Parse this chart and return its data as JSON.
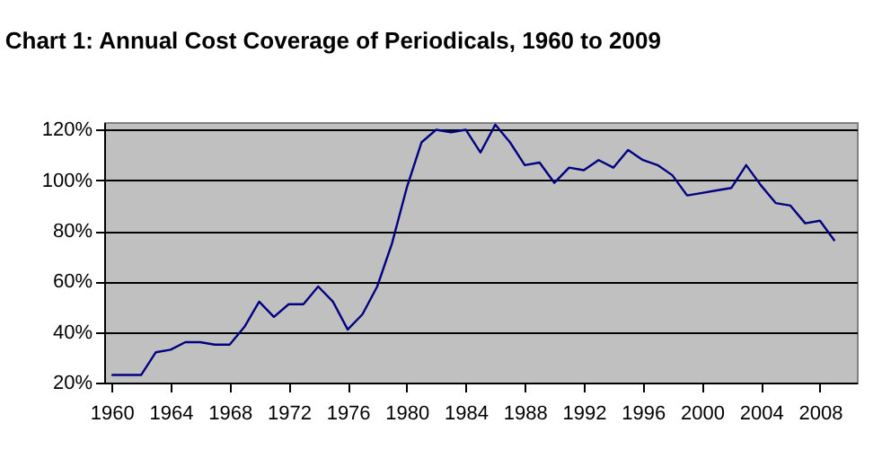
{
  "chart_data": {
    "type": "line",
    "title": "Chart 1:  Annual Cost Coverage  of Periodicals, 1960 to 2009",
    "x": [
      1960,
      1961,
      1962,
      1963,
      1964,
      1965,
      1966,
      1967,
      1968,
      1969,
      1970,
      1971,
      1972,
      1973,
      1974,
      1975,
      1976,
      1977,
      1978,
      1979,
      1980,
      1981,
      1982,
      1983,
      1984,
      1985,
      1986,
      1987,
      1988,
      1989,
      1990,
      1991,
      1992,
      1993,
      1994,
      1995,
      1996,
      1997,
      1998,
      1999,
      2000,
      2001,
      2002,
      2003,
      2004,
      2005,
      2006,
      2007,
      2008,
      2009
    ],
    "series": [
      {
        "color": "#000080",
        "values": [
          23,
          23,
          23,
          32,
          33,
          36,
          36,
          35,
          35,
          42,
          52,
          46,
          51,
          51,
          58,
          52,
          41,
          47,
          58,
          75,
          97,
          115,
          120,
          119,
          120,
          111,
          122,
          115,
          106,
          107,
          99,
          105,
          104,
          108,
          105,
          112,
          108,
          106,
          102,
          94,
          95,
          96,
          97,
          106,
          98,
          91,
          90,
          83,
          84,
          76
        ]
      }
    ],
    "xlim": [
      1959.5,
      2010.5
    ],
    "xticks": [
      1960,
      1964,
      1968,
      1972,
      1976,
      1980,
      1984,
      1988,
      1992,
      1996,
      2000,
      2004,
      2008
    ],
    "ylim": [
      20,
      123
    ],
    "yticks": [
      {
        "value": 20,
        "label": "20%"
      },
      {
        "value": 40,
        "label": "40%"
      },
      {
        "value": 60,
        "label": "60%"
      },
      {
        "value": 80,
        "label": "80%"
      },
      {
        "value": 100,
        "label": "100%"
      },
      {
        "value": 120,
        "label": "120%"
      }
    ],
    "grid": "y",
    "marker": "none",
    "line_style": "solid"
  }
}
